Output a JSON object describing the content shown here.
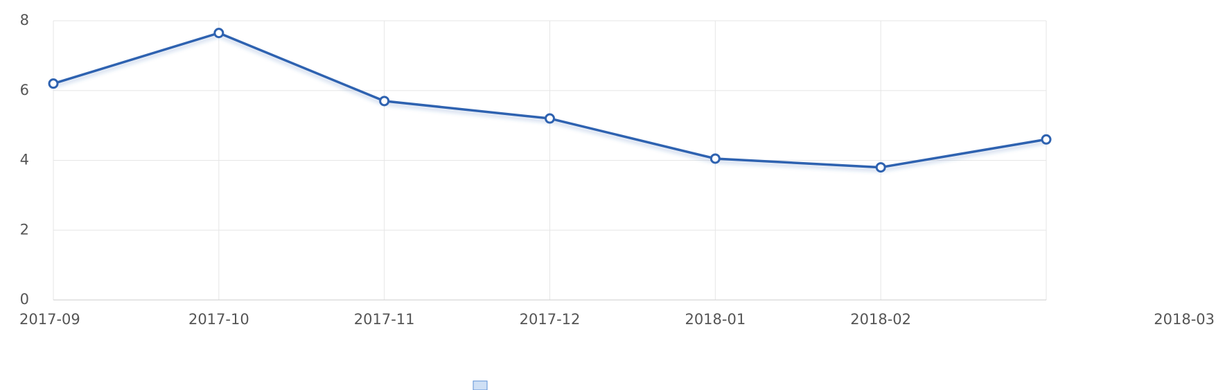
{
  "chart_data": {
    "type": "line",
    "x": [
      "2017-09",
      "2017-10",
      "2017-11",
      "2017-12",
      "2018-01",
      "2018-02",
      "2018-03"
    ],
    "values": [
      6.2,
      7.65,
      5.7,
      5.2,
      4.05,
      3.8,
      4.6
    ],
    "color": "#2e62b0",
    "ylim": [
      0,
      8
    ],
    "yticks": [
      0,
      2,
      4,
      6,
      8
    ],
    "grid": true
  }
}
